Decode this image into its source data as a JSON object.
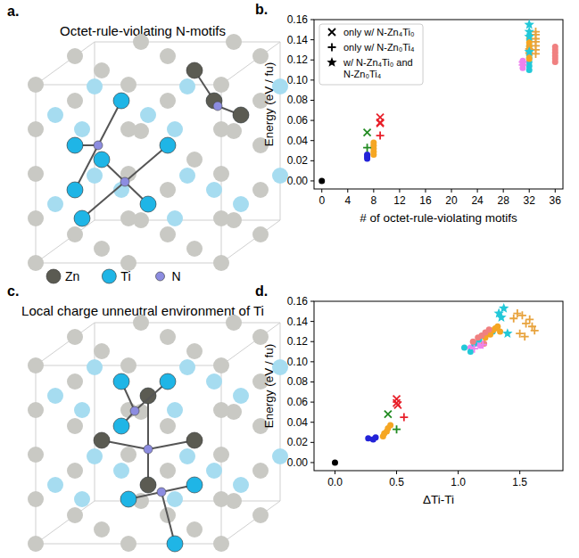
{
  "panel_letters": [
    "a.",
    "b.",
    "c.",
    "d."
  ],
  "structures": [
    {
      "title": "Octet-rule-violating N-motifs"
    },
    {
      "title": "Local charge unneutral environment of Ti"
    }
  ],
  "atom_legend": [
    {
      "label": "Zn",
      "color": "#5b5b52"
    },
    {
      "label": "Ti",
      "color": "#1fb5e6"
    },
    {
      "label": "N",
      "color": "#8c8ce0"
    }
  ],
  "chart_data": [
    {
      "type": "scatter",
      "x_label": "# of octet-rule-violating motifs",
      "y_label": "Energy (eV / fu)",
      "xlim": [
        -1.2,
        37.2
      ],
      "ylim": [
        -0.008,
        0.16
      ],
      "xticks": [
        0,
        4,
        8,
        12,
        16,
        20,
        24,
        28,
        32,
        36
      ],
      "yticks": [
        {
          "value": 0,
          "label": "0.00"
        },
        {
          "value": 0.02,
          "label": "0.02"
        },
        {
          "value": 0.04,
          "label": "0.04"
        },
        {
          "value": 0.06,
          "label": "0.06"
        },
        {
          "value": 0.08,
          "label": "0.08"
        },
        {
          "value": 0.1,
          "label": "0.10"
        },
        {
          "value": 0.12,
          "label": "0.12"
        },
        {
          "value": 0.14,
          "label": "0.14"
        },
        {
          "value": 0.16,
          "label": "0.16"
        }
      ],
      "legend": "upper left",
      "series": [
        {
          "marker": "circle",
          "x": [
            0,
            7,
            7,
            7,
            8,
            8,
            8,
            8,
            8,
            31,
            31,
            31,
            32,
            32,
            32,
            32,
            32,
            32,
            32,
            32,
            32,
            32,
            32,
            32,
            32,
            36,
            36,
            36,
            36,
            36,
            36
          ],
          "values": [
            0,
            0.022,
            0.024,
            0.026,
            0.026,
            0.029,
            0.032,
            0.035,
            0.038,
            0.112,
            0.116,
            0.119,
            0.11,
            0.114,
            0.118,
            0.122,
            0.126,
            0.13,
            0.134,
            0.121,
            0.125,
            0.129,
            0.133,
            0.137,
            0.141,
            0.118,
            0.121,
            0.124,
            0.127,
            0.13,
            0.133
          ],
          "colors": [
            "#000000",
            "#2323d8",
            "#2323d8",
            "#2323d8",
            "#f5a623",
            "#f5a623",
            "#f5a623",
            "#f5a623",
            "#f5a623",
            "#ee82ee",
            "#ee82ee",
            "#ee82ee",
            "#22c8d8",
            "#22c8d8",
            "#22c8d8",
            "#22c8d8",
            "#22c8d8",
            "#22c8d8",
            "#22c8d8",
            "#f5a623",
            "#f5a623",
            "#f5a623",
            "#f5a623",
            "#f5a623",
            "#f5a623",
            "#f08080",
            "#f08080",
            "#f08080",
            "#f08080",
            "#f08080",
            "#f08080"
          ]
        },
        {
          "name": "only w/ N-Zn₄Ti₀",
          "marker": "x",
          "color": "#000000",
          "x": [
            7,
            9,
            9,
            9
          ],
          "values": [
            0.048,
            0.063,
            0.058,
            0.057
          ],
          "colors": [
            "#228b22",
            "#e8202a",
            "#e8202a",
            "#e8202a"
          ]
        },
        {
          "name": "only w/ N-Zn₀Ti₄",
          "marker": "plus",
          "color": "#000000",
          "x": [
            7,
            9,
            31,
            31,
            32,
            32,
            33,
            33,
            33,
            33,
            33,
            33,
            33
          ],
          "values": [
            0.033,
            0.045,
            0.115,
            0.118,
            0.127,
            0.131,
            0.126,
            0.13,
            0.134,
            0.138,
            0.141,
            0.145,
            0.148
          ],
          "colors": [
            "#228b22",
            "#e8202a",
            "#ee82ee",
            "#ee82ee",
            "#e8a33d",
            "#e8a33d",
            "#e8a33d",
            "#e8a33d",
            "#e8a33d",
            "#e8a33d",
            "#e8a33d",
            "#e8a33d",
            "#e8a33d"
          ]
        },
        {
          "name": "w/ N-Zn₄Ti₀ and N-Zn₀Ti₄",
          "marker": "star",
          "color": "#000000",
          "x": [
            32,
            32,
            32,
            32
          ],
          "values": [
            0.155,
            0.148,
            0.143,
            0.128
          ],
          "colors": [
            "#22c8d8",
            "#22c8d8",
            "#22c8d8",
            "#22c8d8"
          ]
        }
      ]
    },
    {
      "type": "scatter",
      "x_label": "ΔTi-Ti",
      "y_label": "Energy (eV / fu)",
      "xlim": [
        -0.17,
        1.85
      ],
      "ylim": [
        -0.008,
        0.16
      ],
      "xticks": [
        {
          "value": 0,
          "label": "0.0"
        },
        {
          "value": 0.5,
          "label": "0.5"
        },
        {
          "value": 1,
          "label": "1.0"
        },
        {
          "value": 1.5,
          "label": "1.5"
        }
      ],
      "yticks": [
        {
          "value": 0,
          "label": "0.00"
        },
        {
          "value": 0.02,
          "label": "0.02"
        },
        {
          "value": 0.04,
          "label": "0.04"
        },
        {
          "value": 0.06,
          "label": "0.06"
        },
        {
          "value": 0.08,
          "label": "0.08"
        },
        {
          "value": 0.1,
          "label": "0.10"
        },
        {
          "value": 0.12,
          "label": "0.12"
        },
        {
          "value": 0.14,
          "label": "0.14"
        },
        {
          "value": 0.16,
          "label": "0.16"
        }
      ],
      "series": [
        {
          "marker": "circle",
          "x": [
            0,
            0.27,
            0.31,
            0.33,
            0.39,
            0.4,
            0.42,
            0.43,
            0.45,
            1.1,
            1.15,
            1.18,
            1.05,
            1.1,
            1.13,
            1.17,
            1.2,
            1.24,
            1.28,
            1.22,
            1.26,
            1.28,
            1.3,
            1.32,
            1.34,
            1.12,
            1.16,
            1.19,
            1.22,
            1.25,
            1.21
          ],
          "values": [
            0,
            0.024,
            0.023,
            0.025,
            0.026,
            0.029,
            0.031,
            0.034,
            0.037,
            0.114,
            0.118,
            0.116,
            0.114,
            0.11,
            0.118,
            0.122,
            0.126,
            0.128,
            0.13,
            0.124,
            0.127,
            0.131,
            0.133,
            0.135,
            0.13,
            0.12,
            0.124,
            0.126,
            0.129,
            0.132,
            0.118
          ],
          "colors": [
            "#000000",
            "#2323d8",
            "#2323d8",
            "#2323d8",
            "#f5a623",
            "#f5a623",
            "#f5a623",
            "#f5a623",
            "#f5a623",
            "#ee82ee",
            "#ee82ee",
            "#ee82ee",
            "#22c8d8",
            "#22c8d8",
            "#22c8d8",
            "#22c8d8",
            "#22c8d8",
            "#22c8d8",
            "#22c8d8",
            "#f5a623",
            "#f5a623",
            "#f5a623",
            "#f5a623",
            "#f5a623",
            "#f5a623",
            "#f08080",
            "#f08080",
            "#f08080",
            "#f08080",
            "#f08080",
            "#f08080"
          ]
        },
        {
          "marker": "x",
          "x": [
            0.43,
            0.5,
            0.5,
            0.51
          ],
          "values": [
            0.048,
            0.063,
            0.059,
            0.057
          ],
          "colors": [
            "#228b22",
            "#e8202a",
            "#e8202a",
            "#e8202a"
          ]
        },
        {
          "marker": "plus",
          "x": [
            0.5,
            0.56,
            1.13,
            1.2,
            1.45,
            1.48,
            1.52,
            1.55,
            1.58,
            1.6,
            1.62,
            1.5,
            1.54
          ],
          "values": [
            0.033,
            0.045,
            0.113,
            0.117,
            0.143,
            0.148,
            0.146,
            0.138,
            0.142,
            0.135,
            0.131,
            0.128,
            0.125
          ],
          "colors": [
            "#228b22",
            "#e8202a",
            "#ee82ee",
            "#ee82ee",
            "#e8a33d",
            "#e8a33d",
            "#e8a33d",
            "#e8a33d",
            "#e8a33d",
            "#e8a33d",
            "#e8a33d",
            "#e8a33d",
            "#e8a33d"
          ]
        },
        {
          "marker": "star",
          "x": [
            1.33,
            1.37,
            1.35,
            1.4
          ],
          "values": [
            0.148,
            0.153,
            0.144,
            0.128
          ],
          "colors": [
            "#22c8d8",
            "#22c8d8",
            "#22c8d8",
            "#22c8d8"
          ]
        }
      ]
    }
  ]
}
